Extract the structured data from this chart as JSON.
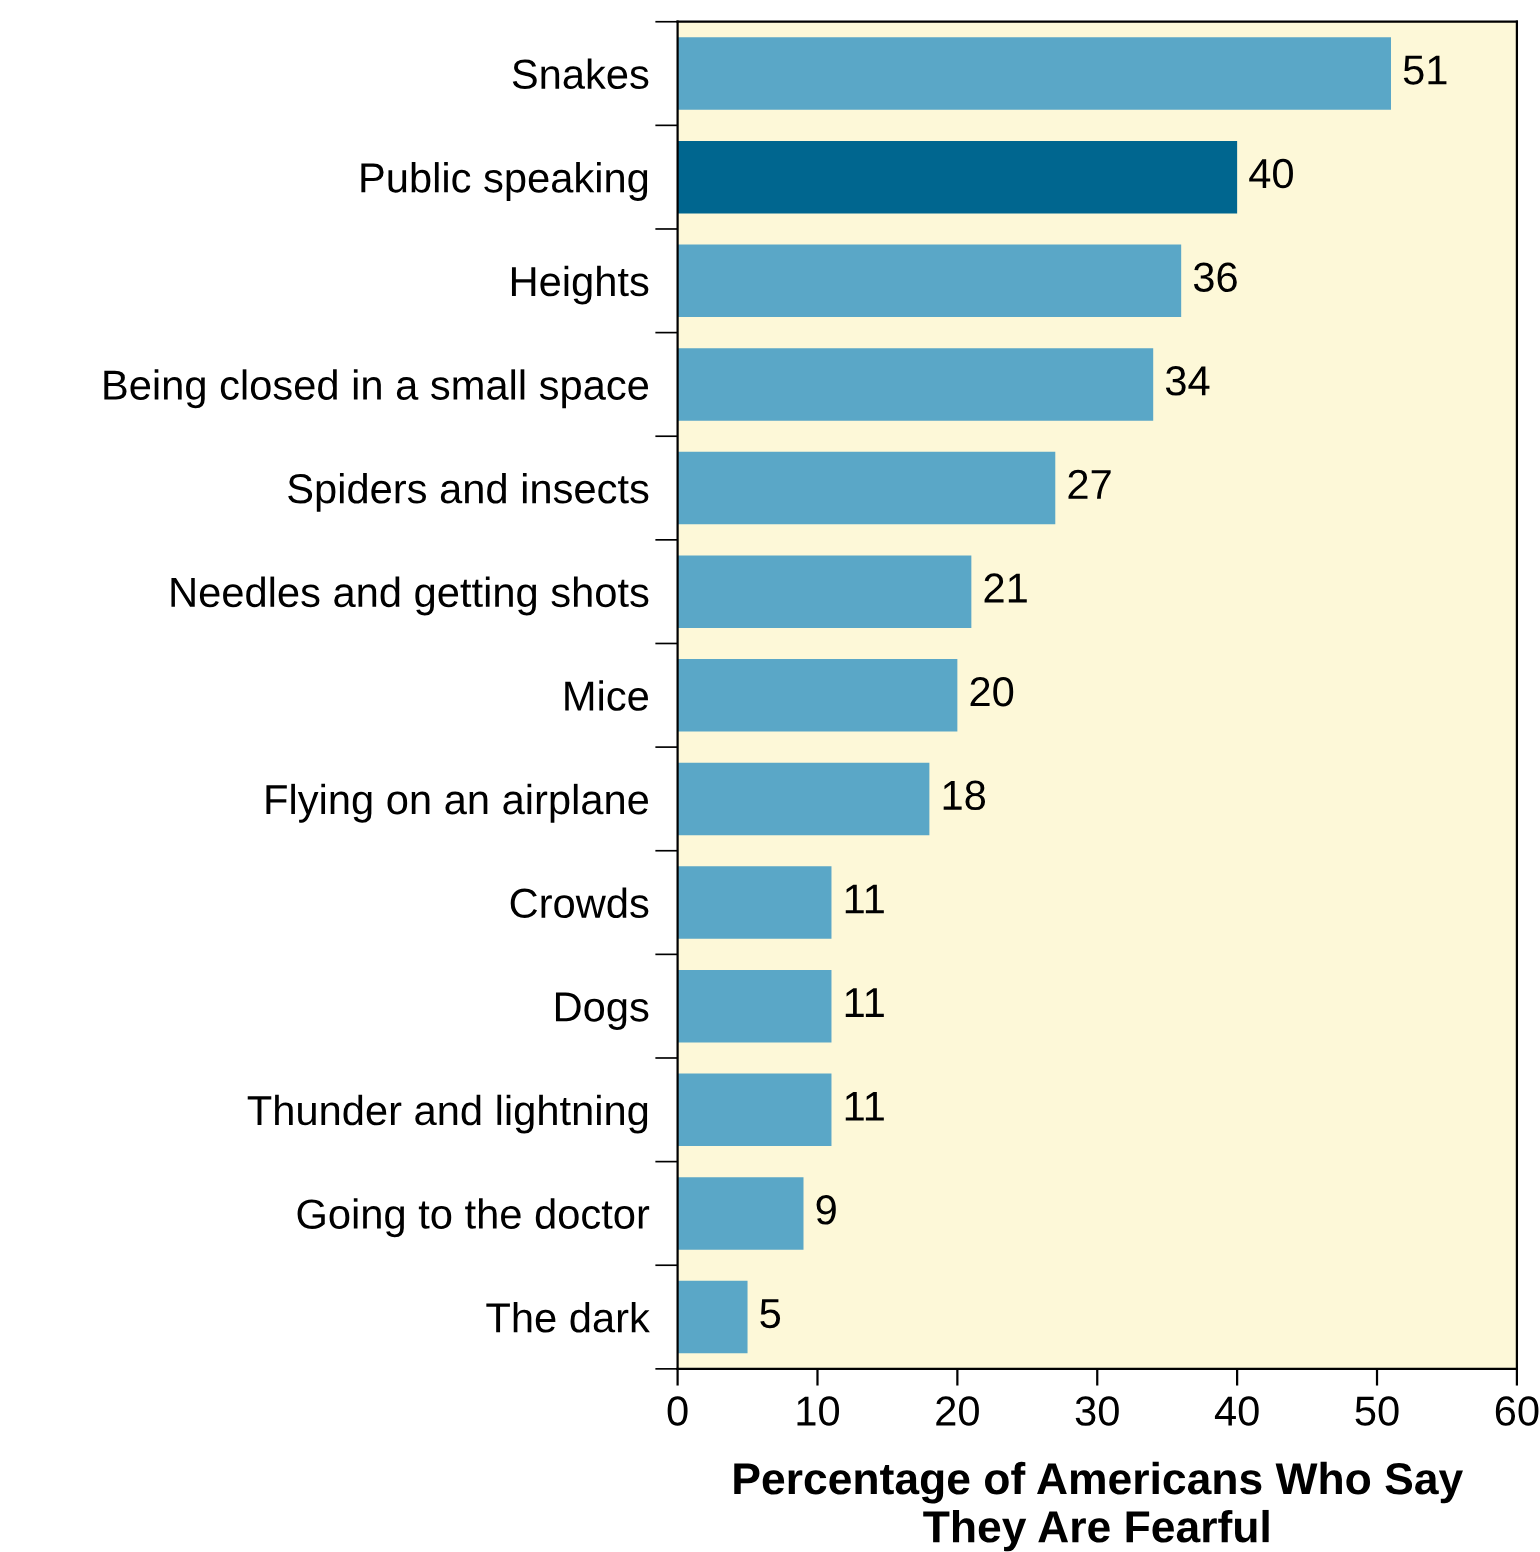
{
  "chart_data": {
    "type": "bar",
    "orientation": "horizontal",
    "xlabel": "Percentage of Americans Who Say\nThey Are Fearful",
    "categories": [
      "Snakes",
      "Public speaking",
      "Heights",
      "Being closed in a small space",
      "Spiders and insects",
      "Needles and getting shots",
      "Mice",
      "Flying on an airplane",
      "Crowds",
      "Dogs",
      "Thunder and lightning",
      "Going to the doctor",
      "The dark"
    ],
    "values": [
      51,
      40,
      36,
      34,
      27,
      21,
      20,
      18,
      11,
      11,
      11,
      9,
      5
    ],
    "colors": [
      "#5aa7c7",
      "#00668f",
      "#5aa7c7",
      "#5aa7c7",
      "#5aa7c7",
      "#5aa7c7",
      "#5aa7c7",
      "#5aa7c7",
      "#5aa7c7",
      "#5aa7c7",
      "#5aa7c7",
      "#5aa7c7",
      "#5aa7c7"
    ],
    "xlim": [
      0,
      60
    ],
    "xticks": [
      0,
      10,
      20,
      30,
      40,
      50,
      60
    ],
    "data_labels": true,
    "grid": false,
    "legend": false
  }
}
